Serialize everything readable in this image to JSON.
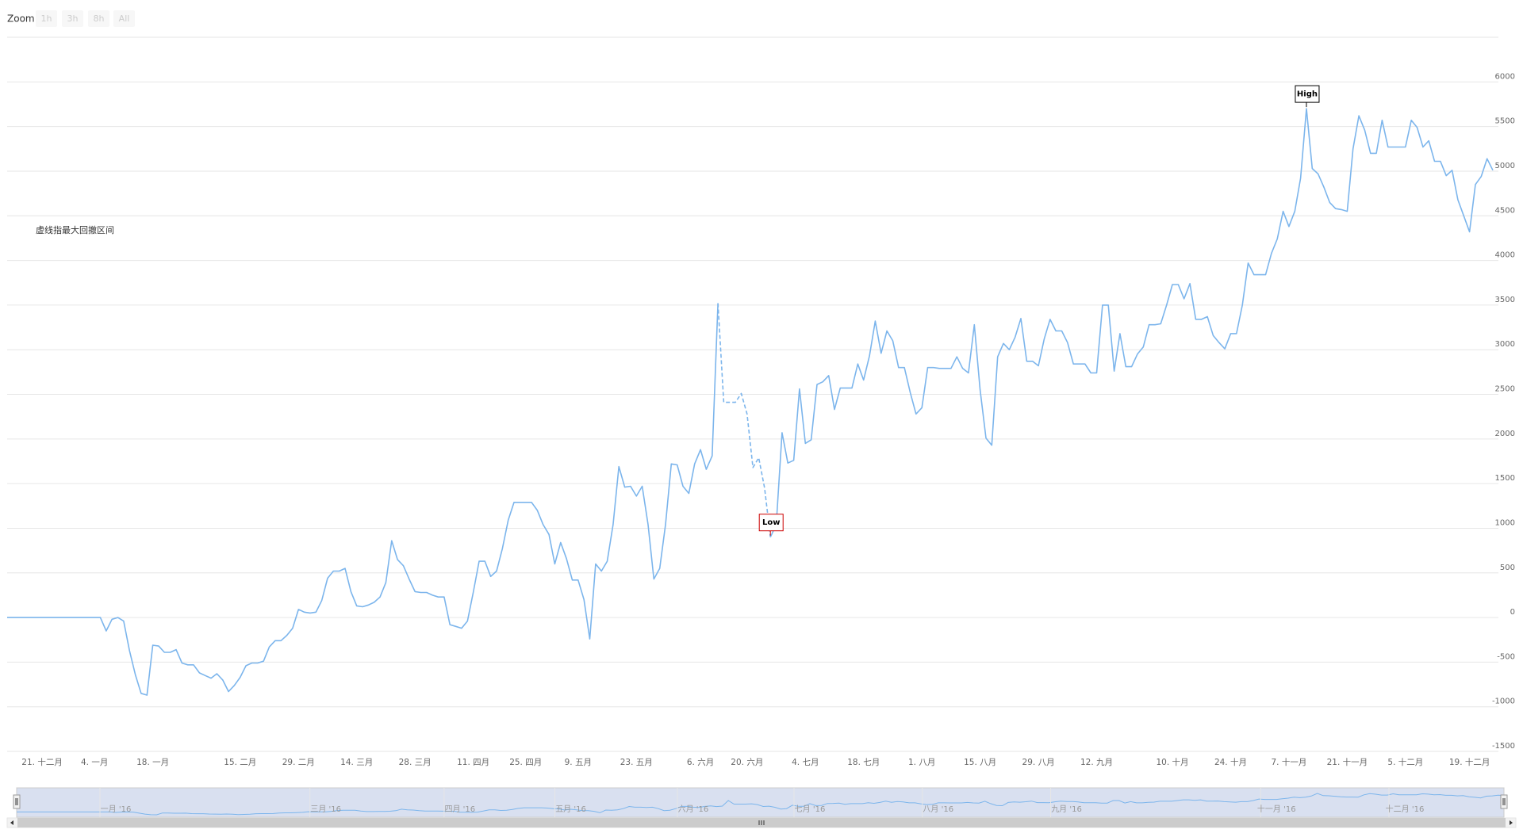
{
  "chart_data": {
    "type": "line",
    "range_selector": {
      "label": "Zoom",
      "buttons": [
        "1h",
        "3h",
        "8h",
        "All"
      ]
    },
    "annotation": "虚线指最大回撤区间",
    "categories": [
      null,
      null,
      null,
      null,
      null,
      null,
      "21. 十二月",
      null,
      null,
      null,
      null,
      null,
      null,
      null,
      null,
      "4. 一月",
      null,
      null,
      null,
      null,
      null,
      null,
      null,
      null,
      null,
      "18. 一月",
      null,
      null,
      null,
      null,
      null,
      null,
      null,
      null,
      null,
      null,
      null,
      null,
      null,
      null,
      "15. 二月",
      null,
      null,
      null,
      null,
      null,
      null,
      null,
      null,
      null,
      "29. 二月",
      null,
      null,
      null,
      null,
      null,
      null,
      null,
      null,
      null,
      "14. 三月",
      null,
      null,
      null,
      null,
      null,
      null,
      null,
      null,
      null,
      "28. 三月",
      null,
      null,
      null,
      null,
      null,
      null,
      null,
      null,
      null,
      "11. 四月",
      null,
      null,
      null,
      null,
      null,
      null,
      null,
      null,
      "25. 四月",
      null,
      null,
      null,
      null,
      null,
      null,
      null,
      null,
      "9. 五月",
      null,
      null,
      null,
      null,
      null,
      null,
      null,
      null,
      null,
      "23. 五月",
      null,
      null,
      null,
      null,
      null,
      null,
      null,
      null,
      null,
      null,
      "6. 六月",
      null,
      null,
      null,
      null,
      null,
      null,
      null,
      "20. 六月",
      null,
      null,
      null,
      null,
      null,
      null,
      null,
      null,
      null,
      "4. 七月",
      null,
      null,
      null,
      null,
      null,
      null,
      null,
      null,
      null,
      "18. 七月",
      null,
      null,
      null,
      null,
      null,
      null,
      null,
      null,
      null,
      "1. 八月",
      null,
      null,
      null,
      null,
      null,
      null,
      null,
      null,
      null,
      "15. 八月",
      null,
      null,
      null,
      null,
      null,
      null,
      null,
      null,
      null,
      "29. 八月",
      null,
      null,
      null,
      null,
      null,
      null,
      null,
      null,
      null,
      "12. 九月",
      null,
      null,
      null,
      null,
      null,
      null,
      null,
      null,
      null,
      null,
      null,
      null,
      "10. 十月",
      null,
      null,
      null,
      null,
      null,
      null,
      null,
      null,
      null,
      "24. 十月",
      null,
      null,
      null,
      null,
      null,
      null,
      null,
      null,
      null,
      "7. 十一月",
      null,
      null,
      null,
      null,
      null,
      null,
      null,
      null,
      null,
      "21. 十一月",
      null,
      null,
      null,
      null,
      null,
      null,
      null,
      null,
      null,
      "5. 十二月",
      null,
      null,
      null,
      null,
      null,
      null,
      null,
      null,
      null,
      null,
      "19. 十二月",
      null,
      null,
      null,
      null
    ],
    "series": [
      {
        "color": "#7cb5ec",
        "values": [
          0,
          0,
          0,
          0,
          0,
          0,
          0,
          0,
          0,
          0,
          0,
          0,
          0,
          0,
          0,
          0,
          0,
          -150,
          -20,
          0,
          -40,
          -370,
          -640,
          -850,
          -870,
          -310,
          -320,
          -390,
          -390,
          -360,
          -510,
          -530,
          -530,
          -620,
          -650,
          -680,
          -630,
          -700,
          -830,
          -760,
          -670,
          -540,
          -510,
          -510,
          -490,
          -330,
          -260,
          -260,
          -200,
          -120,
          90,
          60,
          50,
          60,
          190,
          440,
          520,
          520,
          550,
          290,
          130,
          120,
          140,
          170,
          230,
          390,
          860,
          650,
          580,
          430,
          290,
          280,
          280,
          250,
          230,
          230,
          -80,
          -100,
          -120,
          -40,
          280,
          630,
          630,
          460,
          520,
          770,
          1090,
          1290,
          1290,
          1290,
          1290,
          1200,
          1040,
          930,
          600,
          840,
          660,
          420,
          420,
          200,
          -240,
          600,
          520,
          630,
          1040,
          1690,
          1460,
          1470,
          1360,
          1470,
          1040,
          430,
          550,
          1040,
          1720,
          1710,
          1470,
          1390,
          1720,
          1880,
          1660,
          1810,
          3520,
          2410,
          2410,
          2410,
          2510,
          2280,
          1680,
          1790,
          1450,
          900,
          1040,
          2070,
          1730,
          1760,
          2560,
          1950,
          1990,
          2610,
          2640,
          2710,
          2330,
          2570,
          2570,
          2570,
          2840,
          2660,
          2930,
          3320,
          2960,
          3210,
          3100,
          2800,
          2800,
          2520,
          2280,
          2350,
          2800,
          2800,
          2790,
          2790,
          2790,
          2920,
          2790,
          2740,
          3280,
          2550,
          2010,
          1930,
          2920,
          3070,
          3000,
          3140,
          3350,
          2870,
          2870,
          2820,
          3120,
          3340,
          3210,
          3210,
          3080,
          2840,
          2840,
          2840,
          2740,
          2740,
          3500,
          3500,
          2760,
          3180,
          2810,
          2810,
          2950,
          3030,
          3280,
          3280,
          3290,
          3500,
          3730,
          3730,
          3570,
          3740,
          3340,
          3340,
          3370,
          3160,
          3080,
          3010,
          3180,
          3180,
          3500,
          3970,
          3840,
          3840,
          3840,
          4080,
          4240,
          4550,
          4380,
          4550,
          4920,
          5700,
          5030,
          4970,
          4820,
          4650,
          4580,
          4570,
          4550,
          5250,
          5620,
          5460,
          5200,
          5200,
          5570,
          5270,
          5270,
          5270,
          5270,
          5570,
          5490,
          5270,
          5340,
          5110,
          5110,
          4950,
          5010,
          4680,
          4500,
          4320,
          4850,
          4940,
          5140,
          5010
        ]
      }
    ],
    "flags": {
      "high": {
        "title": "High",
        "color": "#000000"
      },
      "low": {
        "title": "Low",
        "color": "#cc0000"
      }
    },
    "ylim": [
      -1500,
      6500
    ],
    "yticks": [
      -1500,
      -1000,
      -500,
      0,
      500,
      1000,
      1500,
      2000,
      2500,
      3000,
      3500,
      4000,
      4500,
      5000,
      5500,
      6000
    ],
    "grid": true,
    "navigator_ticks": [
      {
        "value": 17,
        "label": "一月 '16"
      },
      {
        "value": 53,
        "label": "三月 '16"
      },
      {
        "value": 76,
        "label": "四月 '16"
      },
      {
        "value": 95,
        "label": "五月 '16"
      },
      {
        "value": 116,
        "label": "六月 '16"
      },
      {
        "value": 136,
        "label": "七月 '16"
      },
      {
        "value": 158,
        "label": "八月 '16"
      },
      {
        "value": 180,
        "label": "九月 '16"
      },
      {
        "value": 216,
        "label": "十一月 '16"
      },
      {
        "value": 238,
        "label": "十二月 '16"
      }
    ]
  }
}
